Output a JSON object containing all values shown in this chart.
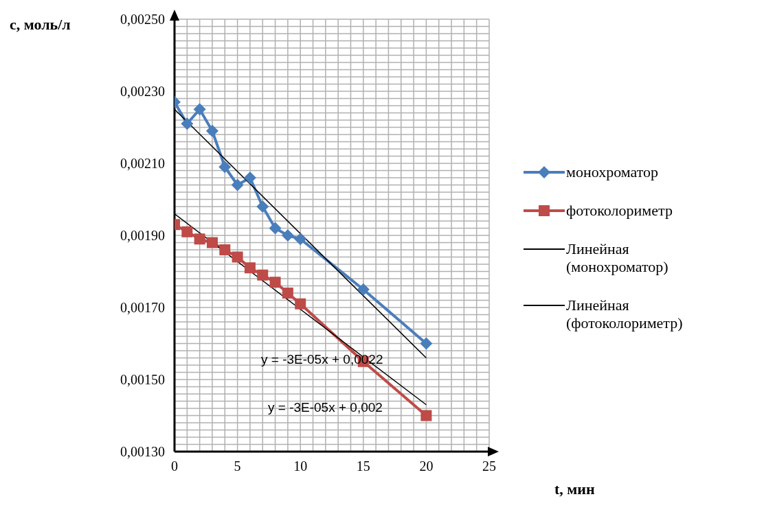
{
  "chart_data": {
    "type": "line",
    "xlabel": "t, мин",
    "ylabel": "c, моль/л",
    "xlim": [
      0,
      25
    ],
    "ylim": [
      0.0013,
      0.0025
    ],
    "xticks": [
      0,
      {
        "value": 1,
        "label": null
      },
      {
        "value": 2,
        "label": null
      },
      {
        "value": 3,
        "label": null
      },
      {
        "value": 4,
        "label": null
      },
      5,
      {
        "value": 6,
        "label": null
      },
      {
        "value": 7,
        "label": null
      },
      {
        "value": 8,
        "label": null
      },
      {
        "value": 9,
        "label": null
      },
      10,
      {
        "value": 11,
        "label": null
      },
      {
        "value": 12,
        "label": null
      },
      {
        "value": 13,
        "label": null
      },
      {
        "value": 14,
        "label": null
      },
      15,
      {
        "value": 16,
        "label": null
      },
      {
        "value": 17,
        "label": null
      },
      {
        "value": 18,
        "label": null
      },
      {
        "value": 19,
        "label": null
      },
      20,
      {
        "value": 21,
        "label": null
      },
      {
        "value": 22,
        "label": null
      },
      {
        "value": 23,
        "label": null
      },
      {
        "value": 24,
        "label": null
      },
      25
    ],
    "yticks": [
      {
        "value": 0.0013,
        "label": "0,00130"
      },
      {
        "value": 0.00132,
        "label": null
      },
      {
        "value": 0.00134,
        "label": null
      },
      {
        "value": 0.00136,
        "label": null
      },
      {
        "value": 0.00138,
        "label": null
      },
      {
        "value": 0.0014,
        "label": null
      },
      {
        "value": 0.00142,
        "label": null
      },
      {
        "value": 0.00144,
        "label": null
      },
      {
        "value": 0.00146,
        "label": null
      },
      {
        "value": 0.00148,
        "label": null
      },
      {
        "value": 0.0015,
        "label": "0,00150"
      },
      {
        "value": 0.00152,
        "label": null
      },
      {
        "value": 0.00154,
        "label": null
      },
      {
        "value": 0.00156,
        "label": null
      },
      {
        "value": 0.00158,
        "label": null
      },
      {
        "value": 0.0016,
        "label": null
      },
      {
        "value": 0.00162,
        "label": null
      },
      {
        "value": 0.00164,
        "label": null
      },
      {
        "value": 0.00166,
        "label": null
      },
      {
        "value": 0.00168,
        "label": null
      },
      {
        "value": 0.0017,
        "label": "0,00170"
      },
      {
        "value": 0.00172,
        "label": null
      },
      {
        "value": 0.00174,
        "label": null
      },
      {
        "value": 0.00176,
        "label": null
      },
      {
        "value": 0.00178,
        "label": null
      },
      {
        "value": 0.0018,
        "label": null
      },
      {
        "value": 0.00182,
        "label": null
      },
      {
        "value": 0.00184,
        "label": null
      },
      {
        "value": 0.00186,
        "label": null
      },
      {
        "value": 0.00188,
        "label": null
      },
      {
        "value": 0.0019,
        "label": "0,00190"
      },
      {
        "value": 0.00192,
        "label": null
      },
      {
        "value": 0.00194,
        "label": null
      },
      {
        "value": 0.00196,
        "label": null
      },
      {
        "value": 0.00198,
        "label": null
      },
      {
        "value": 0.002,
        "label": null
      },
      {
        "value": 0.00202,
        "label": null
      },
      {
        "value": 0.00204,
        "label": null
      },
      {
        "value": 0.00206,
        "label": null
      },
      {
        "value": 0.00208,
        "label": null
      },
      {
        "value": 0.0021,
        "label": "0,00210"
      },
      {
        "value": 0.00212,
        "label": null
      },
      {
        "value": 0.00214,
        "label": null
      },
      {
        "value": 0.00216,
        "label": null
      },
      {
        "value": 0.00218,
        "label": null
      },
      {
        "value": 0.0022,
        "label": null
      },
      {
        "value": 0.00222,
        "label": null
      },
      {
        "value": 0.00224,
        "label": null
      },
      {
        "value": 0.00226,
        "label": null
      },
      {
        "value": 0.00228,
        "label": null
      },
      {
        "value": 0.0023,
        "label": "0,00230"
      },
      {
        "value": 0.00232,
        "label": null
      },
      {
        "value": 0.00234,
        "label": null
      },
      {
        "value": 0.00236,
        "label": null
      },
      {
        "value": 0.00238,
        "label": null
      },
      {
        "value": 0.0024,
        "label": null
      },
      {
        "value": 0.00242,
        "label": null
      },
      {
        "value": 0.00244,
        "label": null
      },
      {
        "value": 0.00246,
        "label": null
      },
      {
        "value": 0.00248,
        "label": null
      },
      {
        "value": 0.0025,
        "label": "0,00250"
      }
    ],
    "grid": true,
    "legend": "right",
    "line_style": "solid",
    "series": [
      {
        "name": "монохроматор",
        "color": "#4a7ebb",
        "marker": "diamond",
        "x": [
          0,
          1,
          2,
          3,
          4,
          5,
          6,
          7,
          8,
          9,
          10,
          15,
          20
        ],
        "values": [
          0.00227,
          0.00221,
          0.00225,
          0.00219,
          0.00209,
          0.00204,
          0.00206,
          0.00198,
          0.00192,
          0.0019,
          0.00189,
          0.00175,
          0.0016
        ]
      },
      {
        "name": "фотоколориметр",
        "color": "#be4b48",
        "marker": "square",
        "x": [
          0,
          1,
          2,
          3,
          4,
          5,
          6,
          7,
          8,
          9,
          10,
          15,
          20
        ],
        "values": [
          0.00193,
          0.00191,
          0.00189,
          0.00188,
          0.00186,
          0.00184,
          0.00181,
          0.00179,
          0.00177,
          0.00174,
          0.00171,
          0.00155,
          0.0014
        ]
      },
      {
        "name": "Линейная (монохроматор)",
        "color": "#000000",
        "marker": "none",
        "x": [
          0,
          20
        ],
        "values": [
          0.00225,
          0.00156
        ]
      },
      {
        "name": "Линейная (фотоколориметр)",
        "color": "#000000",
        "marker": "none",
        "x": [
          0,
          20
        ],
        "values": [
          0.00196,
          0.00143
        ]
      }
    ],
    "annotations": [
      "y = -3E-05x + 0,0022",
      "y = -3E-05x + 0,002"
    ]
  }
}
